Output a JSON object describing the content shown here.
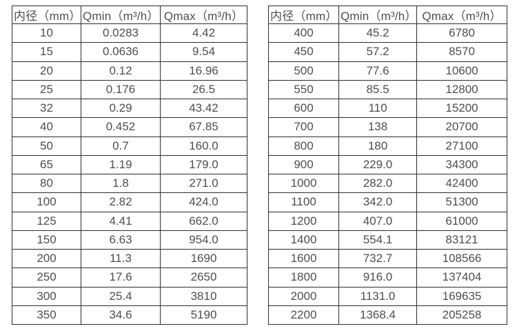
{
  "page": {
    "background_color": "#ffffff",
    "border_color": "#2b2b2b",
    "text_color": "#4d4d4d"
  },
  "tables": [
    {
      "name": "diameter-flow-table-small",
      "headers": [
        "内径（mm）",
        "Qmin（m³/h）",
        "Qmax（m³/h）"
      ],
      "rows": [
        [
          "10",
          "0.0283",
          "4.42"
        ],
        [
          "15",
          "0.0636",
          "9.54"
        ],
        [
          "20",
          "0.12",
          "16.96"
        ],
        [
          "25",
          "0.176",
          "26.5"
        ],
        [
          "32",
          "0.29",
          "43.42"
        ],
        [
          "40",
          "0.452",
          "67.85"
        ],
        [
          "50",
          "0.7",
          "160.0"
        ],
        [
          "65",
          "1.19",
          "179.0"
        ],
        [
          "80",
          "1.8",
          "271.0"
        ],
        [
          "100",
          "2.82",
          "424.0"
        ],
        [
          "125",
          "4.41",
          "662.0"
        ],
        [
          "150",
          "6.63",
          "954.0"
        ],
        [
          "200",
          "11.3",
          "1690"
        ],
        [
          "250",
          "17.6",
          "2650"
        ],
        [
          "300",
          "25.4",
          "3810"
        ],
        [
          "350",
          "34.6",
          "5190"
        ]
      ]
    },
    {
      "name": "diameter-flow-table-large",
      "headers": [
        "内径（mm）",
        "Qmin（m³/h）",
        "Qmax（m³/h）"
      ],
      "rows": [
        [
          "400",
          "45.2",
          "6780"
        ],
        [
          "450",
          "57.2",
          "8570"
        ],
        [
          "500",
          "77.6",
          "10600"
        ],
        [
          "550",
          "85.5",
          "12800"
        ],
        [
          "600",
          "110",
          "15200"
        ],
        [
          "700",
          "138",
          "20700"
        ],
        [
          "800",
          "180",
          "27100"
        ],
        [
          "900",
          "229.0",
          "34300"
        ],
        [
          "1000",
          "282.0",
          "42400"
        ],
        [
          "1100",
          "342.0",
          "51300"
        ],
        [
          "1200",
          "407.0",
          "61000"
        ],
        [
          "1400",
          "554.1",
          "83121"
        ],
        [
          "1600",
          "732.7",
          "108566"
        ],
        [
          "1800",
          "916.0",
          "137404"
        ],
        [
          "2000",
          "1131.0",
          "169635"
        ],
        [
          "2200",
          "1368.4",
          "205258"
        ]
      ]
    }
  ]
}
